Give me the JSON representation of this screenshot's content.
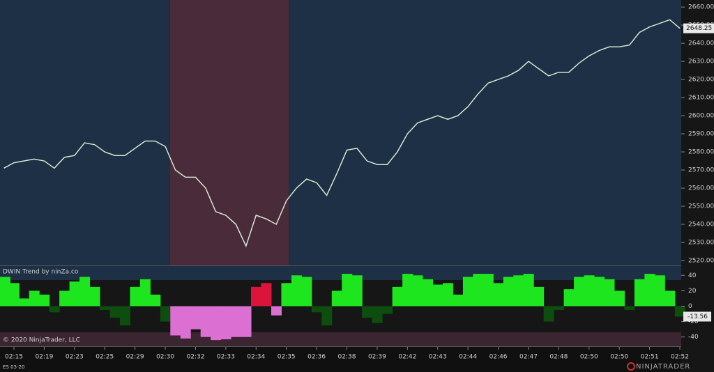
{
  "chart_data": [
    {
      "type": "line",
      "color": "#d6e6cf",
      "categories": [
        null,
        "02:15",
        null,
        null,
        "02:19",
        null,
        null,
        "02:23",
        null,
        null,
        "02:25",
        null,
        null,
        "02:29",
        null,
        null,
        "02:30",
        null,
        null,
        "02:32",
        null,
        null,
        "02:33",
        null,
        null,
        "02:34",
        null,
        null,
        "02:35",
        null,
        null,
        "02:36",
        null,
        null,
        "02:38",
        null,
        null,
        "02:39",
        null,
        null,
        "02:42",
        null,
        null,
        "02:43",
        null,
        null,
        "02:44",
        null,
        null,
        "02:46",
        null,
        null,
        "02:47",
        null,
        null,
        "02:48",
        null,
        null,
        "02:50",
        null,
        null,
        "02:50",
        null,
        null,
        "02:51",
        null,
        null,
        "02:52"
      ],
      "values": [
        2571,
        2574,
        2575,
        2576,
        2575,
        2571,
        2577,
        2578,
        2585,
        2584,
        2580,
        2578,
        2578,
        2582,
        2586,
        2586,
        2583,
        2570,
        2566,
        2566,
        2560,
        2547,
        2545,
        2540,
        2528,
        2545,
        2543,
        2540,
        2553,
        2560,
        2565,
        2563,
        2556,
        2568,
        2581,
        2582,
        2575,
        2573,
        2573,
        2580,
        2590,
        2596,
        2598,
        2600,
        2598,
        2600,
        2605,
        2612,
        2618,
        2620,
        2622,
        2625,
        2630,
        2626,
        2622,
        2624,
        2624,
        2629,
        2633,
        2636,
        2638,
        2638,
        2639,
        2646,
        2649,
        2651,
        2653,
        2648.25
      ],
      "ylim": [
        2517.3,
        2663.9
      ],
      "yticks": [
        {
          "value": 2520,
          "label": "2520.00"
        },
        {
          "value": 2530,
          "label": "2530.00"
        },
        {
          "value": 2540,
          "label": "2540.00"
        },
        {
          "value": 2550,
          "label": "2550.00"
        },
        {
          "value": 2560,
          "label": "2560.00"
        },
        {
          "value": 2570,
          "label": "2570.00"
        },
        {
          "value": 2580,
          "label": "2580.00"
        },
        {
          "value": 2590,
          "label": "2590.00"
        },
        {
          "value": 2600,
          "label": "2600.00"
        },
        {
          "value": 2610,
          "label": "2610.00"
        },
        {
          "value": 2620,
          "label": "2620.00"
        },
        {
          "value": 2630,
          "label": "2630.00"
        },
        {
          "value": 2640,
          "label": "2640.00"
        },
        {
          "value": 2650,
          "label": "2650.00"
        },
        {
          "value": 2660,
          "label": "2660.00"
        }
      ],
      "grid": false
    },
    {
      "type": "bar",
      "title": "DWIN Trend by ninZa.co",
      "values": [
        38,
        30,
        10,
        20,
        15,
        -8,
        20,
        32,
        38,
        25,
        -5,
        -15,
        -25,
        25,
        35,
        15,
        -20,
        -38,
        -42,
        -30,
        -40,
        -44,
        -43,
        -40,
        -40,
        25,
        30,
        -12,
        30,
        40,
        38,
        -8,
        -25,
        20,
        42,
        40,
        -15,
        -22,
        -10,
        25,
        42,
        40,
        35,
        28,
        30,
        15,
        38,
        42,
        42,
        30,
        38,
        40,
        42,
        25,
        -20,
        -5,
        22,
        38,
        40,
        38,
        35,
        20,
        -5,
        35,
        42,
        40,
        20,
        -13.56
      ],
      "colors": [
        "#1ee61e",
        "#1ee61e",
        "#1ee61e",
        "#1ee61e",
        "#1ee61e",
        "#0d4d0d",
        "#1ee61e",
        "#1ee61e",
        "#1ee61e",
        "#1ee61e",
        "#0d4d0d",
        "#0d4d0d",
        "#0d4d0d",
        "#1ee61e",
        "#1ee61e",
        "#1ee61e",
        "#0d4d0d",
        "#dc6fd2",
        "#dc6fd2",
        "#dc6fd2",
        "#dc6fd2",
        "#dc6fd2",
        "#dc6fd2",
        "#dc6fd2",
        "#dc6fd2",
        "#dc143c",
        "#dc143c",
        "#dc6fd2",
        "#1ee61e",
        "#1ee61e",
        "#1ee61e",
        "#0d4d0d",
        "#0d4d0d",
        "#1ee61e",
        "#1ee61e",
        "#1ee61e",
        "#0d4d0d",
        "#0d4d0d",
        "#0d4d0d",
        "#1ee61e",
        "#1ee61e",
        "#1ee61e",
        "#1ee61e",
        "#1ee61e",
        "#1ee61e",
        "#1ee61e",
        "#1ee61e",
        "#1ee61e",
        "#1ee61e",
        "#1ee61e",
        "#1ee61e",
        "#1ee61e",
        "#1ee61e",
        "#1ee61e",
        "#0d4d0d",
        "#0d4d0d",
        "#1ee61e",
        "#1ee61e",
        "#1ee61e",
        "#1ee61e",
        "#1ee61e",
        "#1ee61e",
        "#0d4d0d",
        "#1ee61e",
        "#1ee61e",
        "#1ee61e",
        "#1ee61e",
        "#0d4d0d"
      ],
      "ylim": [
        -52,
        52
      ],
      "yticks": [
        40,
        20,
        0,
        -20,
        -40
      ]
    }
  ],
  "footer": {
    "copyright": "© 2020 NinjaTrader, LLC",
    "instrument": "ES 03-20",
    "brand": "NINJATRADER"
  }
}
